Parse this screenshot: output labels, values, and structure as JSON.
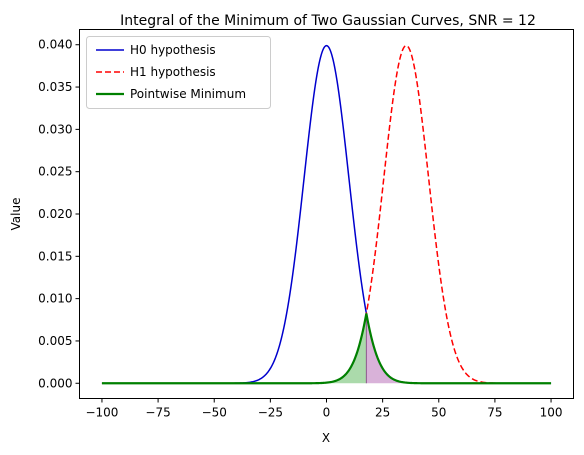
{
  "chart_data": {
    "type": "line",
    "title": "Integral of the Minimum of Two Gaussian Curves, SNR = 12",
    "xlabel": "X",
    "ylabel": "Value",
    "xlim": [
      -100,
      100
    ],
    "ylim": [
      0,
      0.04
    ],
    "xticks": [
      -100,
      -75,
      -50,
      -25,
      0,
      25,
      50,
      75,
      100
    ],
    "xtick_labels": [
      "−100",
      "−75",
      "−50",
      "−25",
      "0",
      "25",
      "50",
      "75",
      "100"
    ],
    "yticks": [
      0,
      0.005,
      0.01,
      0.015,
      0.02,
      0.025,
      0.03,
      0.035,
      0.04
    ],
    "ytick_labels": [
      "0.000",
      "0.005",
      "0.010",
      "0.015",
      "0.020",
      "0.025",
      "0.030",
      "0.035",
      "0.040"
    ],
    "grid": false,
    "legend_position": "top-left",
    "series": [
      {
        "name": "H0 hypothesis",
        "mean": 0,
        "std": 10,
        "color": "#0000cd",
        "style": "solid"
      },
      {
        "name": "H1 hypothesis",
        "mean": 35.5,
        "std": 10,
        "color": "#ff0000",
        "style": "dashed"
      },
      {
        "name": "Pointwise Minimum",
        "color": "#008000",
        "style": "solid"
      }
    ],
    "crossing_x": 17.75,
    "crossing_y": 0.0083,
    "fill_colors": {
      "left": "#66bb66",
      "right": "#bf7fbf"
    }
  }
}
